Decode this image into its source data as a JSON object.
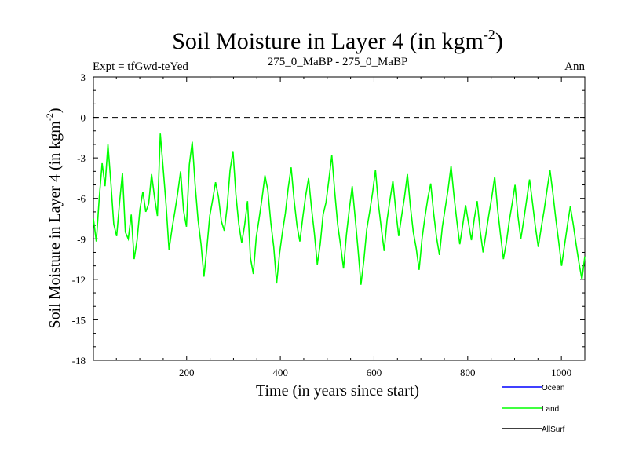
{
  "chart_data": {
    "type": "line",
    "title_main": "Soil Moisture in Layer 4 (in kgm",
    "title_sup": "-2",
    "title_close": ")",
    "subtitle_left": "Expt = tfGwd-teYed",
    "subtitle_center": "275_0_MaBP - 275_0_MaBP",
    "subtitle_right": "Ann",
    "xlabel": "Time (in years since start)",
    "ylabel_main": "Soil Moisture in Layer 4 (in kgm",
    "ylabel_sup": "-2",
    "ylabel_close": ")",
    "xlim": [
      1,
      1050
    ],
    "ylim": [
      -18,
      3
    ],
    "xticks": [
      200,
      400,
      600,
      800,
      1000
    ],
    "yticks": [
      3,
      0,
      -3,
      -6,
      -9,
      -12,
      -15,
      -18
    ],
    "zero_line": 0,
    "series": [
      {
        "name": "Ocean",
        "color": "#0000ff",
        "values": []
      },
      {
        "name": "Land",
        "color": "#00ff00",
        "values": [
          -7.5,
          -9.2,
          -6.0,
          -3.4,
          -5.1,
          -2.0,
          -4.8,
          -7.9,
          -8.8,
          -6.3,
          -4.1,
          -8.5,
          -9.0,
          -7.2,
          -10.5,
          -9.1,
          -6.8,
          -5.5,
          -7.0,
          -6.4,
          -4.2,
          -5.9,
          -7.3,
          -1.2,
          -3.8,
          -6.5,
          -9.8,
          -8.3,
          -7.0,
          -5.6,
          -4.0,
          -6.9,
          -8.1,
          -3.5,
          -1.8,
          -5.0,
          -7.6,
          -9.4,
          -11.8,
          -9.7,
          -7.3,
          -6.1,
          -4.8,
          -5.9,
          -7.7,
          -8.4,
          -6.6,
          -3.9,
          -2.5,
          -5.7,
          -7.9,
          -9.3,
          -8.0,
          -6.2,
          -10.4,
          -11.6,
          -8.9,
          -7.5,
          -6.0,
          -4.3,
          -5.4,
          -7.8,
          -9.6,
          -12.3,
          -10.1,
          -8.5,
          -7.1,
          -5.2,
          -3.7,
          -6.1,
          -8.0,
          -9.2,
          -7.4,
          -5.8,
          -4.5,
          -6.7,
          -8.6,
          -10.9,
          -9.4,
          -7.2,
          -6.3,
          -4.6,
          -2.8,
          -5.5,
          -7.9,
          -9.5,
          -11.2,
          -8.7,
          -6.8,
          -5.1,
          -7.4,
          -9.8,
          -12.4,
          -10.6,
          -8.3,
          -7.0,
          -5.6,
          -3.9,
          -6.4,
          -8.2,
          -9.9,
          -7.6,
          -6.1,
          -4.7,
          -6.9,
          -8.8,
          -7.3,
          -5.9,
          -4.2,
          -6.6,
          -8.5,
          -9.7,
          -11.3,
          -9.0,
          -7.4,
          -6.0,
          -4.9,
          -7.1,
          -8.9,
          -10.2,
          -8.1,
          -6.7,
          -5.3,
          -3.6,
          -5.8,
          -7.7,
          -9.4,
          -8.0,
          -6.5,
          -7.8,
          -9.1,
          -7.5,
          -6.2,
          -8.4,
          -10.0,
          -8.6,
          -7.2,
          -5.9,
          -4.4,
          -6.8,
          -8.7,
          -10.5,
          -9.3,
          -7.7,
          -6.4,
          -5.0,
          -7.3,
          -9.0,
          -7.6,
          -6.1,
          -4.6,
          -6.3,
          -8.1,
          -9.6,
          -8.2,
          -6.9,
          -5.4,
          -3.9,
          -5.6,
          -7.5,
          -9.2,
          -11.0,
          -9.5,
          -8.0,
          -6.6,
          -7.9,
          -9.4,
          -10.8,
          -12.0,
          -10.3
        ]
      },
      {
        "name": "AllSurf",
        "color": "#000000",
        "values": []
      }
    ]
  }
}
